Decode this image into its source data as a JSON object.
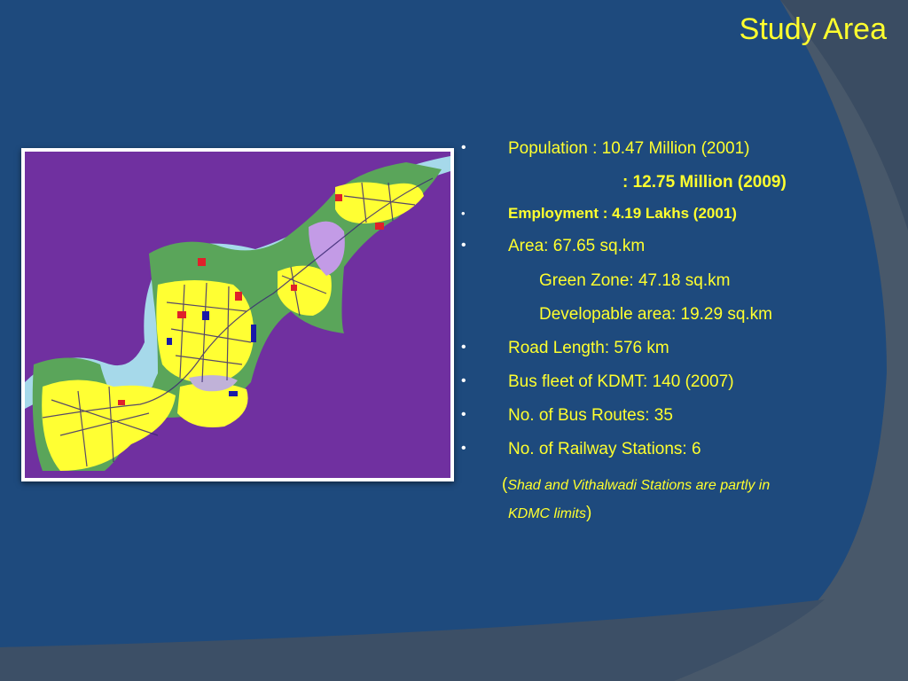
{
  "slide": {
    "title": "Study Area",
    "colors": {
      "background": "#1e4a7d",
      "accent_text": "#ffff2e",
      "bullet": "#ffffff",
      "map_land_purple": "#7030a0",
      "map_river": "#a6d9ea",
      "map_green_zone": "#5aa55a",
      "map_urban": "#ffff33"
    }
  },
  "map": {
    "description_icon": "city-map-image"
  },
  "facts": {
    "population": "Population : 10.47 Million (2001)",
    "population_2009": ": 12.75 Million (2009)",
    "employment": "Employment : 4.19 Lakhs (2001)",
    "area": "Area: 67.65 sq.km",
    "green_zone": "Green Zone: 47.18 sq.km",
    "developable_area": "Developable area: 19.29 sq.km",
    "road_length": "Road Length: 576 km",
    "bus_fleet": "Bus fleet of KDMT: 140 (2007)",
    "bus_routes": "No. of Bus Routes:  35",
    "railway_stations": "No. of Railway Stations: 6",
    "note_open": "(",
    "note_line1": "Shad and Vithalwadi Stations  are partly  in",
    "note_line2": "KDMC limits",
    "note_close": ")"
  },
  "bullet_char": "•"
}
